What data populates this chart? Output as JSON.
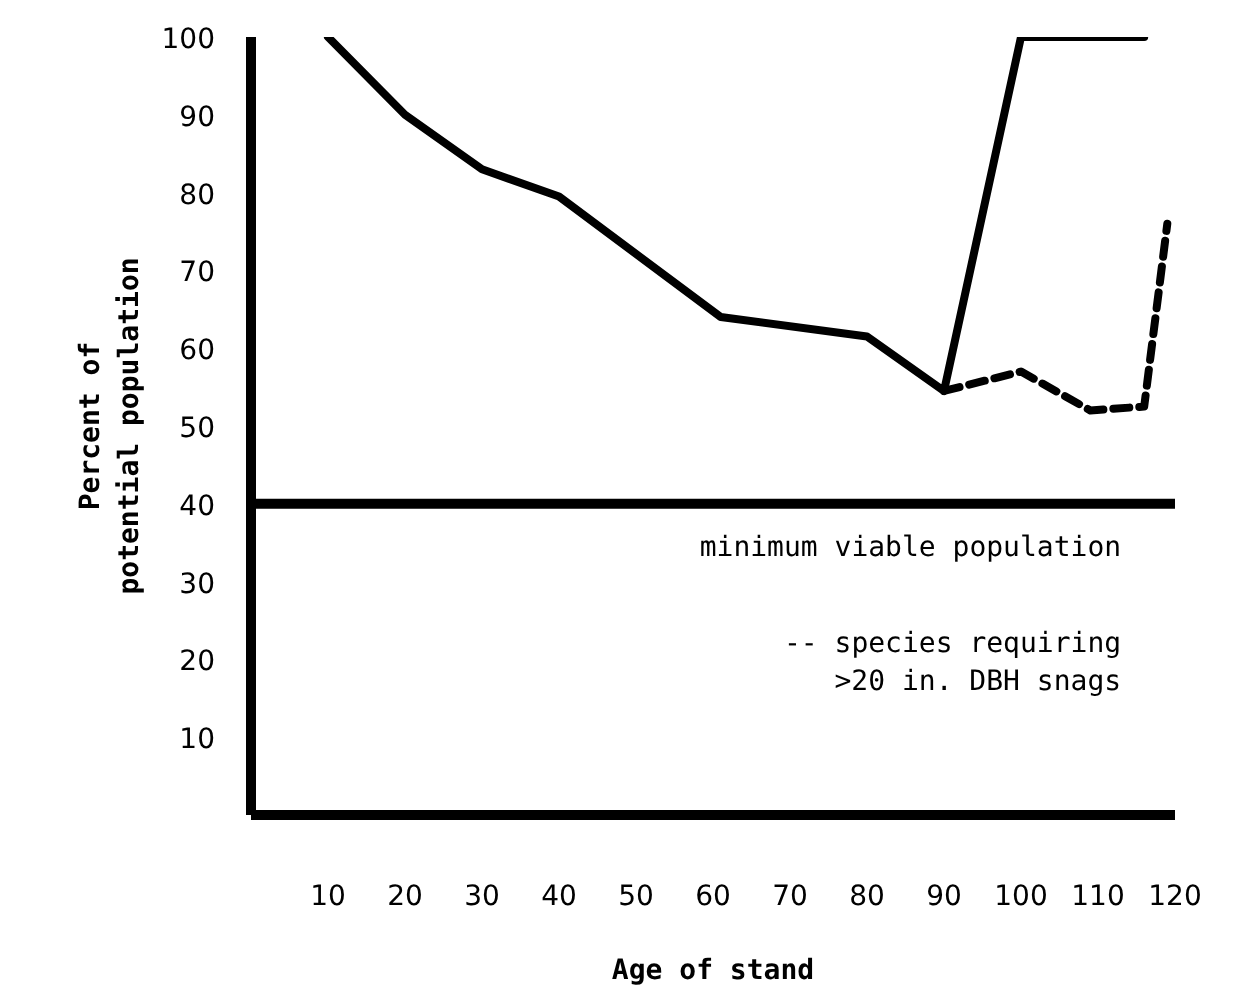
{
  "chart_data": {
    "type": "line",
    "xlabel": "Age of stand",
    "ylabel": "Percent of\npotential population",
    "xlim": [
      0,
      120
    ],
    "ylim": [
      0,
      100
    ],
    "xticks": [
      10,
      20,
      30,
      40,
      50,
      60,
      70,
      80,
      90,
      100,
      110,
      120
    ],
    "yticks": [
      10,
      20,
      30,
      40,
      50,
      60,
      70,
      80,
      90,
      100
    ],
    "grid": false,
    "series": [
      {
        "color": "#000000",
        "line_style": "solid",
        "x": [
          10,
          20,
          30,
          40,
          61,
          80,
          90,
          100,
          116
        ],
        "values": [
          100,
          90,
          83,
          79.5,
          64,
          61.5,
          54.5,
          100,
          100
        ]
      },
      {
        "color": "#000000",
        "line_style": "dashed",
        "x": [
          90,
          100,
          109,
          116,
          119
        ],
        "values": [
          54.5,
          57,
          52,
          52.5,
          76
        ]
      }
    ],
    "ref_lines": [
      {
        "axis": "y",
        "value": 40,
        "label": "minimum viable population",
        "color": "#000000"
      }
    ],
    "annotations": [
      "-- species requiring\n>20 in. DBH snags"
    ]
  }
}
